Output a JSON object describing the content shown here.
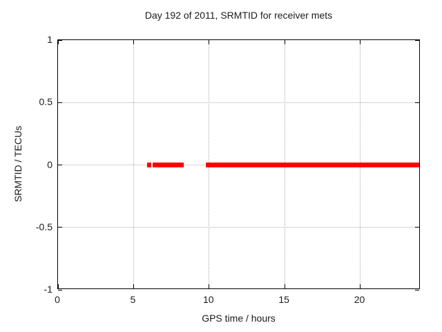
{
  "title": "Day 192 of 2011, SRMTID for receiver mets",
  "chart_data": {
    "type": "scatter",
    "title": "Day 192 of 2011, SRMTID for receiver mets",
    "xlabel": "GPS time / hours",
    "ylabel": "SRMTID / TECUs",
    "xlim": [
      0,
      24
    ],
    "ylim": [
      -1,
      1
    ],
    "xticks": [
      0,
      5,
      10,
      15,
      20
    ],
    "yticks": [
      1,
      0.5,
      0,
      -0.5,
      -1
    ],
    "grid": true,
    "legend": "none",
    "marker": "filled-square",
    "series": [
      {
        "name": "SRMTID",
        "y": 0,
        "x_segments": [
          [
            5.9,
            6.1
          ],
          [
            6.25,
            8.3
          ],
          [
            9.8,
            23.9
          ]
        ]
      }
    ]
  },
  "colors": {
    "marker": "#ff0000",
    "grid": "#a8a8a8",
    "axis": "#000000",
    "text": "#1a1a1a",
    "background": "#ffffff"
  }
}
